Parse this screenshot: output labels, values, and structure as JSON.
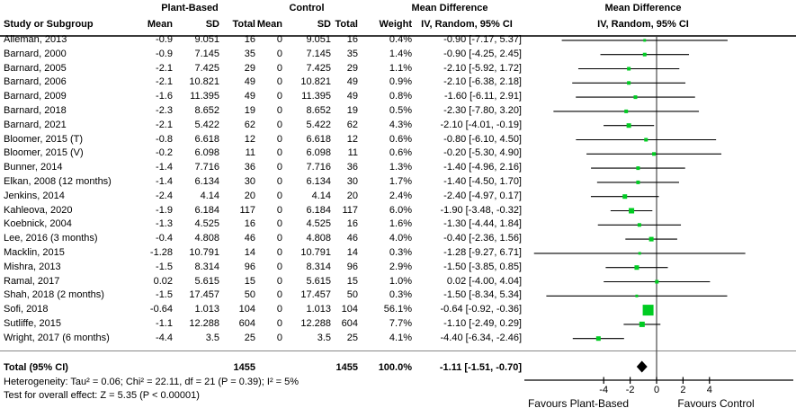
{
  "header": {
    "study_col": "Study or Subgroup",
    "group1": "Plant-Based",
    "group2": "Control",
    "col_mean1": "Mean",
    "col_sd1": "SD",
    "col_total1": "Total",
    "col_mean2": "Mean",
    "col_sd2": "SD",
    "col_total2": "Total",
    "col_weight": "Weight",
    "md_text_title": "Mean Difference",
    "md_text_sub": "IV, Random, 95% CI",
    "md_plot_title": "Mean Difference",
    "md_plot_sub": "IV, Random, 95% CI"
  },
  "chart_data": {
    "type": "forest",
    "marker_color": "#00CC22",
    "axis": {
      "ticks": [
        -4,
        -2,
        0,
        2,
        4
      ],
      "xlabel_left": "Favours Plant-Based",
      "xlabel_right": "Favours Control"
    },
    "studies": [
      {
        "name": "Alleman, 2013",
        "mean1": "-0.9",
        "sd1": "9.051",
        "n1": "16",
        "mean2": "0",
        "sd2": "9.051",
        "n2": "16",
        "weight": "0.4%",
        "w": 0.4,
        "md": -0.9,
        "lo": -7.17,
        "hi": 5.37,
        "ci_label": "-0.90 [-7.17, 5.37]"
      },
      {
        "name": "Barnard, 2000",
        "mean1": "-0.9",
        "sd1": "7.145",
        "n1": "35",
        "mean2": "0",
        "sd2": "7.145",
        "n2": "35",
        "weight": "1.4%",
        "w": 1.4,
        "md": -0.9,
        "lo": -4.25,
        "hi": 2.45,
        "ci_label": "-0.90 [-4.25, 2.45]"
      },
      {
        "name": "Barnard, 2005",
        "mean1": "-2.1",
        "sd1": "7.425",
        "n1": "29",
        "mean2": "0",
        "sd2": "7.425",
        "n2": "29",
        "weight": "1.1%",
        "w": 1.1,
        "md": -2.1,
        "lo": -5.92,
        "hi": 1.72,
        "ci_label": "-2.10 [-5.92, 1.72]"
      },
      {
        "name": "Barnard, 2006",
        "mean1": "-2.1",
        "sd1": "10.821",
        "n1": "49",
        "mean2": "0",
        "sd2": "10.821",
        "n2": "49",
        "weight": "0.9%",
        "w": 0.9,
        "md": -2.1,
        "lo": -6.38,
        "hi": 2.18,
        "ci_label": "-2.10 [-6.38, 2.18]"
      },
      {
        "name": "Barnard, 2009",
        "mean1": "-1.6",
        "sd1": "11.395",
        "n1": "49",
        "mean2": "0",
        "sd2": "11.395",
        "n2": "49",
        "weight": "0.8%",
        "w": 0.8,
        "md": -1.6,
        "lo": -6.11,
        "hi": 2.91,
        "ci_label": "-1.60 [-6.11, 2.91]"
      },
      {
        "name": "Barnard, 2018",
        "mean1": "-2.3",
        "sd1": "8.652",
        "n1": "19",
        "mean2": "0",
        "sd2": "8.652",
        "n2": "19",
        "weight": "0.5%",
        "w": 0.5,
        "md": -2.3,
        "lo": -7.8,
        "hi": 3.2,
        "ci_label": "-2.30 [-7.80, 3.20]"
      },
      {
        "name": "Barnard, 2021",
        "mean1": "-2.1",
        "sd1": "5.422",
        "n1": "62",
        "mean2": "0",
        "sd2": "5.422",
        "n2": "62",
        "weight": "4.3%",
        "w": 4.3,
        "md": -2.1,
        "lo": -4.01,
        "hi": -0.19,
        "ci_label": "-2.10 [-4.01, -0.19]"
      },
      {
        "name": "Bloomer, 2015 (T)",
        "mean1": "-0.8",
        "sd1": "6.618",
        "n1": "12",
        "mean2": "0",
        "sd2": "6.618",
        "n2": "12",
        "weight": "0.6%",
        "w": 0.6,
        "md": -0.8,
        "lo": -6.1,
        "hi": 4.5,
        "ci_label": "-0.80 [-6.10, 4.50]"
      },
      {
        "name": "Bloomer, 2015 (V)",
        "mean1": "-0.2",
        "sd1": "6.098",
        "n1": "11",
        "mean2": "0",
        "sd2": "6.098",
        "n2": "11",
        "weight": "0.6%",
        "w": 0.6,
        "md": -0.2,
        "lo": -5.3,
        "hi": 4.9,
        "ci_label": "-0.20 [-5.30, 4.90]"
      },
      {
        "name": "Bunner, 2014",
        "mean1": "-1.4",
        "sd1": "7.716",
        "n1": "36",
        "mean2": "0",
        "sd2": "7.716",
        "n2": "36",
        "weight": "1.3%",
        "w": 1.3,
        "md": -1.4,
        "lo": -4.96,
        "hi": 2.16,
        "ci_label": "-1.40 [-4.96, 2.16]"
      },
      {
        "name": "Elkan, 2008 (12 months)",
        "mean1": "-1.4",
        "sd1": "6.134",
        "n1": "30",
        "mean2": "0",
        "sd2": "6.134",
        "n2": "30",
        "weight": "1.7%",
        "w": 1.7,
        "md": -1.4,
        "lo": -4.5,
        "hi": 1.7,
        "ci_label": "-1.40 [-4.50, 1.70]"
      },
      {
        "name": "Jenkins, 2014",
        "mean1": "-2.4",
        "sd1": "4.14",
        "n1": "20",
        "mean2": "0",
        "sd2": "4.14",
        "n2": "20",
        "weight": "2.4%",
        "w": 2.4,
        "md": -2.4,
        "lo": -4.97,
        "hi": 0.17,
        "ci_label": "-2.40 [-4.97, 0.17]"
      },
      {
        "name": "Kahleova, 2020",
        "mean1": "-1.9",
        "sd1": "6.184",
        "n1": "117",
        "mean2": "0",
        "sd2": "6.184",
        "n2": "117",
        "weight": "6.0%",
        "w": 6.0,
        "md": -1.9,
        "lo": -3.48,
        "hi": -0.32,
        "ci_label": "-1.90 [-3.48, -0.32]"
      },
      {
        "name": "Koebnick, 2004",
        "mean1": "-1.3",
        "sd1": "4.525",
        "n1": "16",
        "mean2": "0",
        "sd2": "4.525",
        "n2": "16",
        "weight": "1.6%",
        "w": 1.6,
        "md": -1.3,
        "lo": -4.44,
        "hi": 1.84,
        "ci_label": "-1.30 [-4.44, 1.84]"
      },
      {
        "name": "Lee, 2016 (3 months)",
        "mean1": "-0.4",
        "sd1": "4.808",
        "n1": "46",
        "mean2": "0",
        "sd2": "4.808",
        "n2": "46",
        "weight": "4.0%",
        "w": 4.0,
        "md": -0.4,
        "lo": -2.36,
        "hi": 1.56,
        "ci_label": "-0.40 [-2.36, 1.56]"
      },
      {
        "name": "Macklin, 2015",
        "mean1": "-1.28",
        "sd1": "10.791",
        "n1": "14",
        "mean2": "0",
        "sd2": "10.791",
        "n2": "14",
        "weight": "0.3%",
        "w": 0.3,
        "md": -1.28,
        "lo": -9.27,
        "hi": 6.71,
        "ci_label": "-1.28 [-9.27, 6.71]"
      },
      {
        "name": "Mishra, 2013",
        "mean1": "-1.5",
        "sd1": "8.314",
        "n1": "96",
        "mean2": "0",
        "sd2": "8.314",
        "n2": "96",
        "weight": "2.9%",
        "w": 2.9,
        "md": -1.5,
        "lo": -3.85,
        "hi": 0.85,
        "ci_label": "-1.50 [-3.85, 0.85]"
      },
      {
        "name": "Ramal, 2017",
        "mean1": "0.02",
        "sd1": "5.615",
        "n1": "15",
        "mean2": "0",
        "sd2": "5.615",
        "n2": "15",
        "weight": "1.0%",
        "w": 1.0,
        "md": 0.02,
        "lo": -4.0,
        "hi": 4.04,
        "ci_label": "0.02 [-4.00, 4.04]"
      },
      {
        "name": "Shah, 2018 (2 months)",
        "mean1": "-1.5",
        "sd1": "17.457",
        "n1": "50",
        "mean2": "0",
        "sd2": "17.457",
        "n2": "50",
        "weight": "0.3%",
        "w": 0.3,
        "md": -1.5,
        "lo": -8.34,
        "hi": 5.34,
        "ci_label": "-1.50 [-8.34, 5.34]"
      },
      {
        "name": "Sofi, 2018",
        "mean1": "-0.64",
        "sd1": "1.013",
        "n1": "104",
        "mean2": "0",
        "sd2": "1.013",
        "n2": "104",
        "weight": "56.1%",
        "w": 56.1,
        "md": -0.64,
        "lo": -0.92,
        "hi": -0.36,
        "ci_label": "-0.64 [-0.92, -0.36]"
      },
      {
        "name": "Sutliffe, 2015",
        "mean1": "-1.1",
        "sd1": "12.288",
        "n1": "604",
        "mean2": "0",
        "sd2": "12.288",
        "n2": "604",
        "weight": "7.7%",
        "w": 7.7,
        "md": -1.1,
        "lo": -2.49,
        "hi": 0.29,
        "ci_label": "-1.10 [-2.49, 0.29]"
      },
      {
        "name": "Wright, 2017 (6 months)",
        "mean1": "-4.4",
        "sd1": "3.5",
        "n1": "25",
        "mean2": "0",
        "sd2": "3.5",
        "n2": "25",
        "weight": "4.1%",
        "w": 4.1,
        "md": -4.4,
        "lo": -6.34,
        "hi": -2.46,
        "ci_label": "-4.40 [-6.34, -2.46]"
      }
    ],
    "total": {
      "label": "Total (95% CI)",
      "n1": "1455",
      "n2": "1455",
      "weight": "100.0%",
      "md": -1.11,
      "lo": -1.51,
      "hi": -0.7,
      "ci_label": "-1.11 [-1.51, -0.70]"
    }
  },
  "footer": {
    "heterogeneity": "Heterogeneity: Tau² = 0.06; Chi² = 22.11, df = 21 (P = 0.39); I² = 5%",
    "overall": "Test for overall effect: Z = 5.35 (P < 0.00001)"
  }
}
